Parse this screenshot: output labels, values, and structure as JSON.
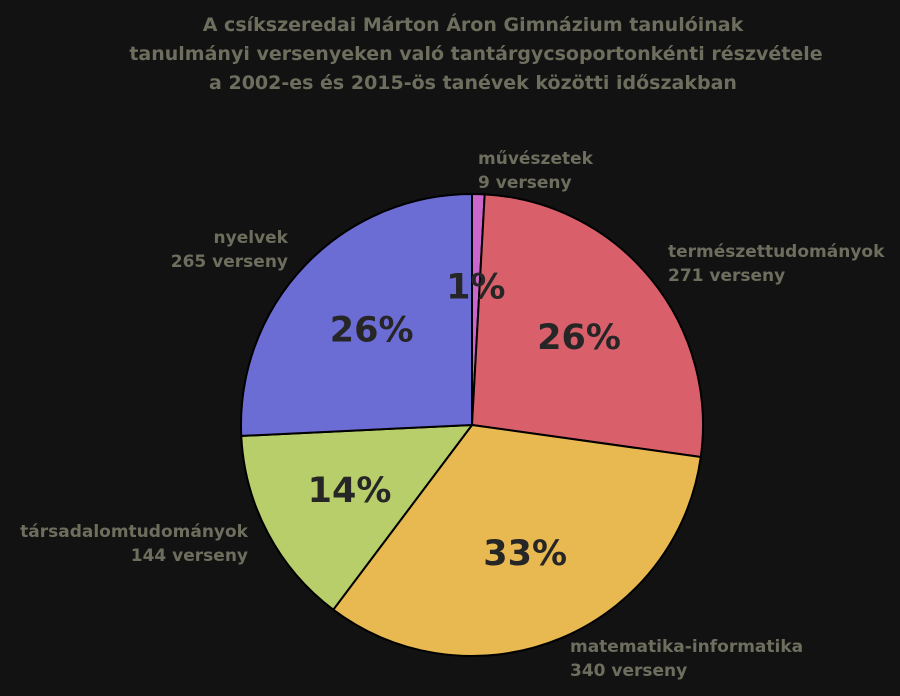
{
  "chart_data": {
    "type": "pie",
    "title": [
      "A csíkszeredai Márton Áron Gimnázium tanulóinak",
      "tanulmányi versenyeken való tantárgycsoportonkénti részvétele",
      "a 2002-es és 2015-ös tanévek közötti időszakban"
    ],
    "start_angle_deg": 0,
    "direction": "clockwise",
    "slices": [
      {
        "name": "művészetek",
        "value": 9,
        "value_label": "9 verseny",
        "percent_label": "1%",
        "color": "#cc66cc"
      },
      {
        "name": "természettudományok",
        "value": 271,
        "value_label": "271 verseny",
        "percent_label": "26%",
        "color": "#d9606b"
      },
      {
        "name": "matematika-informatika",
        "value": 340,
        "value_label": "340 verseny",
        "percent_label": "33%",
        "color": "#e8b951"
      },
      {
        "name": "társadalomtudományok",
        "value": 144,
        "value_label": "144 verseny",
        "percent_label": "14%",
        "color": "#b8ce6a"
      },
      {
        "name": "nyelvek",
        "value": 265,
        "value_label": "265 verseny",
        "percent_label": "26%",
        "color": "#6b6cd4"
      }
    ]
  }
}
